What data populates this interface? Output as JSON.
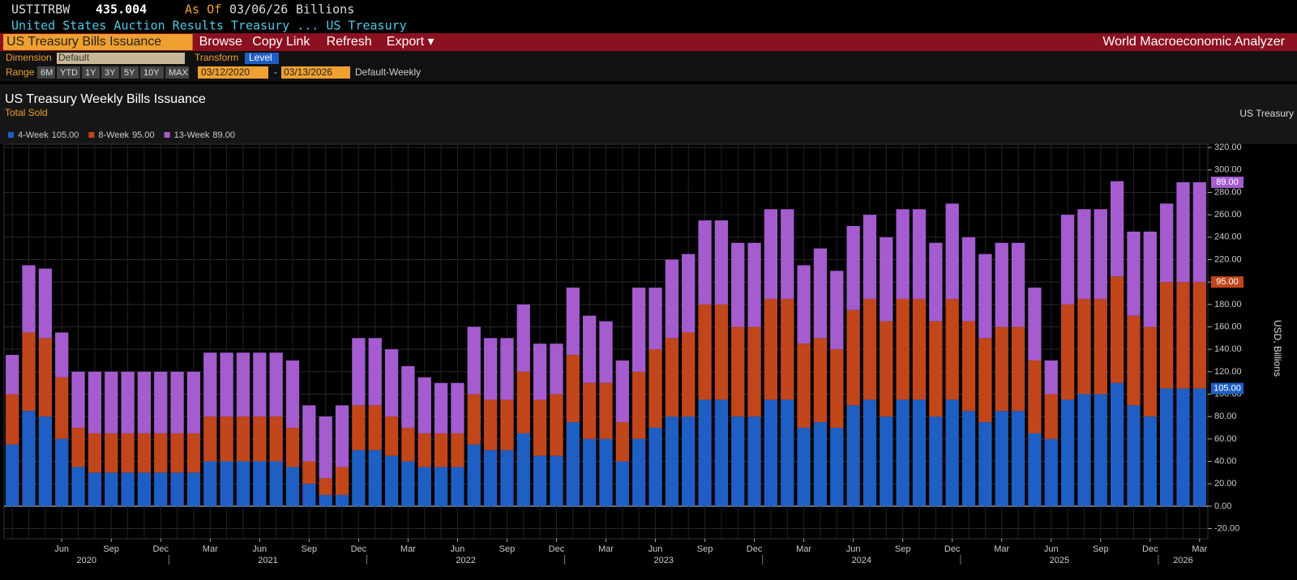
{
  "header": {
    "ticker": "USTITRBW",
    "value": "435.004",
    "as_of_label": "As Of",
    "as_of": "03/06/26",
    "unit": "Billions",
    "subtitle": "United States Auction Results Treasury ...  US Treasury",
    "tabs": [
      "US Treasury Bills Issuance",
      "Browse",
      "Copy Link",
      "Refresh",
      "Export ▾"
    ],
    "app": "World Macroeconomic Analyzer",
    "dimension_label": "Dimension",
    "dimension": "Default",
    "transform_label": "Transform",
    "transform": "Level",
    "range_label": "Range",
    "range_buttons": [
      "6M",
      "YTD",
      "1Y",
      "3Y",
      "5Y",
      "10Y",
      "MAX"
    ],
    "start": "03/12/2020",
    "end": "03/13/2026",
    "frequency": "Default-Weekly"
  },
  "chart_data": {
    "type": "stacked-bar",
    "title": "US Treasury Weekly Bills Issuance",
    "subtitle": "Total Sold",
    "source": "US Treasury",
    "y_label": "USD, Billions",
    "categories": [
      null,
      null,
      null,
      "Jun",
      null,
      null,
      "Sep",
      null,
      null,
      "Dec",
      null,
      null,
      "Mar",
      null,
      null,
      "Jun",
      null,
      null,
      "Sep",
      null,
      null,
      "Dec",
      null,
      null,
      "Mar",
      null,
      null,
      "Jun",
      null,
      null,
      "Sep",
      null,
      null,
      "Dec",
      null,
      null,
      "Mar",
      null,
      null,
      "Jun",
      null,
      null,
      "Sep",
      null,
      null,
      "Dec",
      null,
      null,
      "Mar",
      null,
      null,
      "Jun",
      null,
      null,
      "Sep",
      null,
      null,
      "Dec",
      null,
      null,
      "Mar",
      null,
      null,
      "Jun",
      null,
      null,
      "Sep",
      null,
      null,
      "Dec",
      null,
      null,
      "Mar"
    ],
    "years": [
      "2020",
      "2021",
      "2022",
      "2023",
      "2024",
      "2025",
      "2026"
    ],
    "series": [
      {
        "name": "4-Week",
        "last_label": "105.00",
        "color": "#1f5fc4",
        "values": [
          55,
          85,
          80,
          60,
          35,
          30,
          30,
          30,
          30,
          30,
          30,
          30,
          40,
          40,
          40,
          40,
          40,
          35,
          20,
          10,
          10,
          50,
          50,
          45,
          40,
          35,
          35,
          35,
          55,
          50,
          50,
          65,
          45,
          45,
          75,
          60,
          60,
          40,
          60,
          70,
          80,
          80,
          95,
          95,
          80,
          80,
          95,
          95,
          70,
          75,
          70,
          90,
          95,
          80,
          95,
          95,
          80,
          95,
          85,
          75,
          85,
          85,
          65,
          60,
          95,
          100,
          100,
          110,
          90,
          80,
          105,
          105,
          105
        ]
      },
      {
        "name": "8-Week",
        "last_label": "95.00",
        "color": "#c2461b",
        "values": [
          45,
          70,
          70,
          55,
          35,
          35,
          35,
          35,
          35,
          35,
          35,
          35,
          40,
          40,
          40,
          40,
          40,
          35,
          20,
          15,
          25,
          40,
          40,
          35,
          30,
          30,
          30,
          30,
          45,
          45,
          45,
          55,
          50,
          55,
          60,
          50,
          50,
          35,
          60,
          70,
          70,
          75,
          85,
          85,
          80,
          80,
          90,
          90,
          75,
          75,
          70,
          85,
          90,
          85,
          90,
          90,
          85,
          90,
          80,
          75,
          75,
          75,
          65,
          40,
          85,
          85,
          85,
          95,
          80,
          80,
          95,
          95,
          95
        ]
      },
      {
        "name": "13-Week",
        "last_label": "89.00",
        "color": "#a45ccf",
        "values": [
          35,
          60,
          62,
          40,
          50,
          55,
          55,
          55,
          55,
          55,
          55,
          55,
          57,
          57,
          57,
          57,
          57,
          60,
          50,
          55,
          55,
          60,
          60,
          60,
          55,
          50,
          45,
          45,
          60,
          55,
          55,
          60,
          50,
          45,
          60,
          60,
          55,
          55,
          75,
          55,
          70,
          70,
          75,
          75,
          75,
          75,
          80,
          80,
          70,
          80,
          70,
          75,
          75,
          75,
          80,
          80,
          70,
          85,
          75,
          75,
          75,
          75,
          65,
          30,
          80,
          80,
          80,
          85,
          75,
          85,
          70,
          89,
          89
        ]
      }
    ],
    "ylim": [
      -29,
      323
    ],
    "yticks": [
      {
        "value": -20,
        "label": "-20.00"
      },
      {
        "value": 0,
        "label": "0.00"
      },
      {
        "value": 20,
        "label": "20.00"
      },
      {
        "value": 40,
        "label": "40.00"
      },
      {
        "value": 60,
        "label": "60.00"
      },
      {
        "value": 80,
        "label": "80.00"
      },
      {
        "value": 100,
        "label": "100.00"
      },
      {
        "value": 120,
        "label": "120.00"
      },
      {
        "value": 140,
        "label": "140.00"
      },
      {
        "value": 160,
        "label": "160.00"
      },
      {
        "value": 180,
        "label": "180.00"
      },
      {
        "value": 200,
        "label": "200.00"
      },
      {
        "value": 220,
        "label": "220.00"
      },
      {
        "value": 240,
        "label": "240.00"
      },
      {
        "value": 260,
        "label": "260.00"
      },
      {
        "value": 280,
        "label": "280.00"
      },
      {
        "value": 300,
        "label": "300.00"
      },
      {
        "value": 320,
        "label": "320.00"
      }
    ],
    "grid": true
  }
}
